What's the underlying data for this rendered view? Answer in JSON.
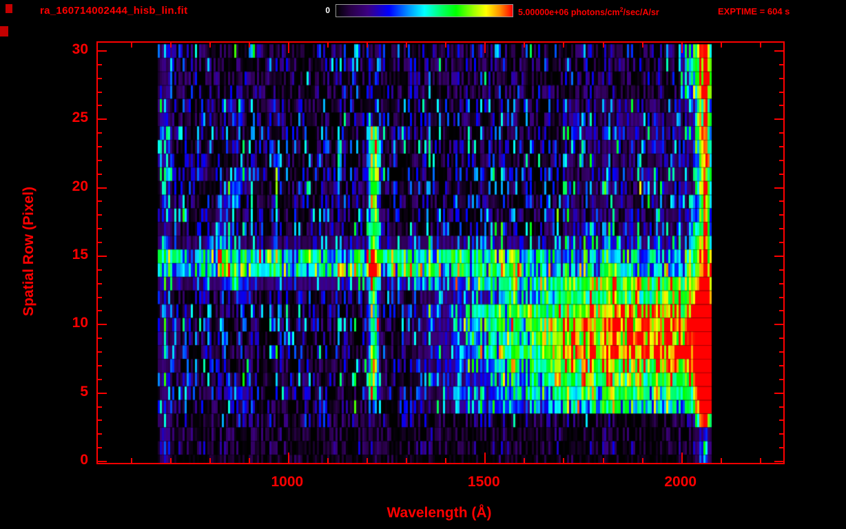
{
  "header": {
    "title": "ra_160714002444_hisb_lin.fit",
    "exptime": "EXPTIME = 604 s",
    "colorbar": {
      "min_label": "0",
      "max_label": "5.00000e+06",
      "unit_prefix": " photons/cm",
      "unit_sup": "2",
      "unit_suffix": "/sec/A/sr"
    }
  },
  "colors": {
    "accent": "#ff0000",
    "min_label_color": "#ffffff",
    "background": "#000000"
  },
  "chart_data": {
    "type": "heatmap",
    "title": "ra_160714002444_hisb_lin.fit",
    "xlabel": "Wavelength (Å)",
    "ylabel": "Spatial Row (Pixel)",
    "xlim": [
      515,
      2258
    ],
    "ylim": [
      -0.1,
      30.6
    ],
    "x_ticks": [
      1000,
      1500,
      2000
    ],
    "x_minor_step": 100,
    "x_minor_range": [
      600,
      2200
    ],
    "y_ticks": [
      0,
      5,
      10,
      15,
      20,
      25,
      30
    ],
    "y_minor_step": 1,
    "rows": 31,
    "data_extent_wavelength": [
      668,
      2078
    ],
    "colorbar": {
      "min": 0,
      "max": 5000000,
      "units": "photons/cm^2/sec/A/sr"
    },
    "colormap": [
      [
        0.0,
        "#000000"
      ],
      [
        0.08,
        "#280046"
      ],
      [
        0.18,
        "#3c0082"
      ],
      [
        0.3,
        "#0000ff"
      ],
      [
        0.42,
        "#00a0ff"
      ],
      [
        0.5,
        "#00ffff"
      ],
      [
        0.6,
        "#00ff64"
      ],
      [
        0.68,
        "#00ff00"
      ],
      [
        0.78,
        "#a0ff00"
      ],
      [
        0.85,
        "#ffff00"
      ],
      [
        0.93,
        "#ff8c00"
      ],
      [
        1.0,
        "#ff0000"
      ]
    ],
    "seed": 160714,
    "features": {
      "emission_line": {
        "center": 1216,
        "sigma": 9,
        "row_min": 5,
        "row_max": 24,
        "amp": 0.55
      },
      "horizontal_streak": {
        "row_center": 14.5,
        "amps": {
          "13": 0.15,
          "14": 0.55,
          "15": 0.38,
          "16": 0.1
        }
      },
      "continuum": {
        "row_min": 4,
        "row_max": 13,
        "row_peak": 9,
        "onset": 1300,
        "full": 1800,
        "amp": 0.85
      },
      "right_edge": {
        "center": 2058,
        "sigma": 14,
        "amp": 0.55,
        "red_rows": [
          3,
          7
        ]
      },
      "left_line": {
        "center": 687,
        "sigma": 8,
        "amp": 0.28
      },
      "arc": {
        "row_min": 12,
        "row_max": 21,
        "vertex_row": 16.5,
        "vertex_wavelength": 826,
        "curvature": 2.8,
        "sigma": 14,
        "amp": 0.3
      },
      "upper_right_wash": {
        "row_min": 16,
        "row_max": 26,
        "wavelength_min": 1700,
        "amp": 0.18
      },
      "corner_patch": {
        "row_min": 27,
        "wavelength_min": 1995,
        "amp": 0.45
      }
    },
    "row_activity": [
      0.25,
      0.5,
      0.5,
      0.6,
      0.85,
      1,
      1,
      1,
      1,
      1,
      1,
      1,
      1,
      1,
      1,
      1,
      1,
      1,
      1,
      1,
      1,
      1,
      1,
      1,
      1,
      1,
      0.9,
      0.8,
      0.85,
      0.9,
      0.9
    ]
  }
}
